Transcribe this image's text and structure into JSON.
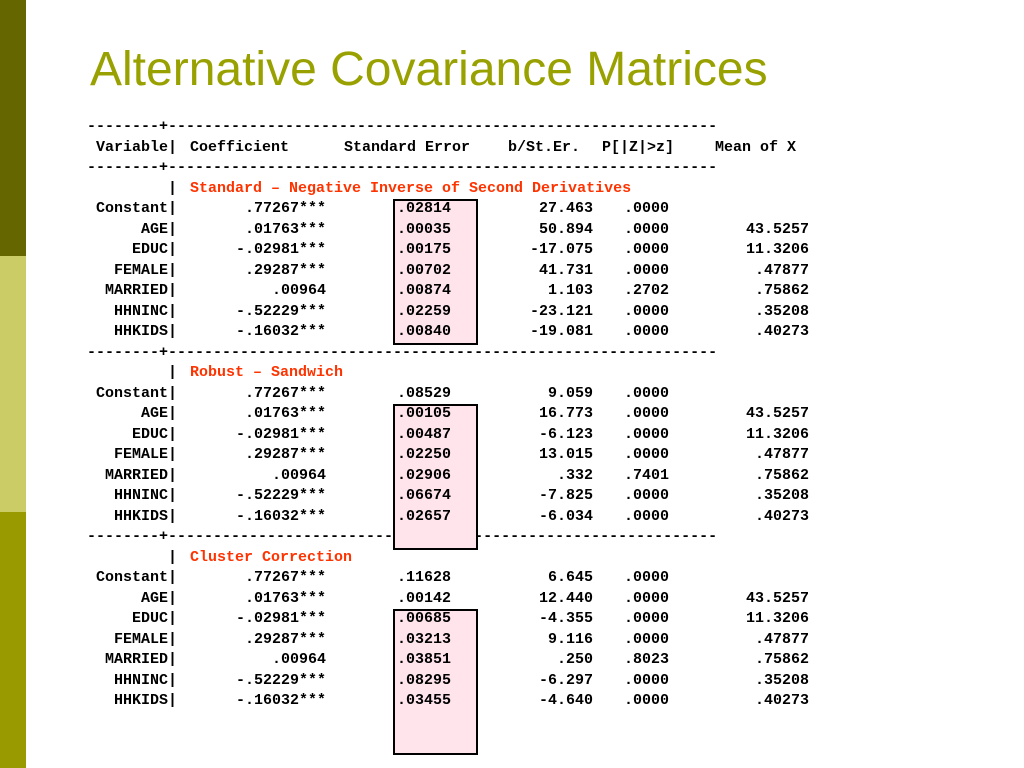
{
  "title": "Alternative Covariance Matrices",
  "header": {
    "divider_top": "--------+-------------------------------------------------------------",
    "variable": "Variable|",
    "coefficient": "Coefficient",
    "std_error": "Standard Error",
    "b_st_er": "b/St.Er.",
    "p_value": "P[|Z|>z]",
    "mean_x": "Mean of X",
    "divider": "--------+-------------------------------------------------------------"
  },
  "sections": [
    {
      "label": "Standard – Negative Inverse of Second Derivatives",
      "rows": [
        {
          "var": "Constant|",
          "coef": ".77267***",
          "se": ".02814",
          "z": "27.463",
          "p": ".0000",
          "mean": ""
        },
        {
          "var": "AGE|",
          "coef": ".01763***",
          "se": ".00035",
          "z": "50.894",
          "p": ".0000",
          "mean": "43.5257"
        },
        {
          "var": "EDUC|",
          "coef": "-.02981***",
          "se": ".00175",
          "z": "-17.075",
          "p": ".0000",
          "mean": "11.3206"
        },
        {
          "var": "FEMALE|",
          "coef": ".29287***",
          "se": ".00702",
          "z": "41.731",
          "p": ".0000",
          "mean": ".47877"
        },
        {
          "var": "MARRIED|",
          "coef": ".00964",
          "se": ".00874",
          "z": "1.103",
          "p": ".2702",
          "mean": ".75862"
        },
        {
          "var": "HHNINC|",
          "coef": "-.52229***",
          "se": ".02259",
          "z": "-23.121",
          "p": ".0000",
          "mean": ".35208"
        },
        {
          "var": "HHKIDS|",
          "coef": "-.16032***",
          "se": ".00840",
          "z": "-19.081",
          "p": ".0000",
          "mean": ".40273"
        }
      ]
    },
    {
      "label": "Robust – Sandwich",
      "rows": [
        {
          "var": "Constant|",
          "coef": ".77267***",
          "se": ".08529",
          "z": "9.059",
          "p": ".0000",
          "mean": ""
        },
        {
          "var": "AGE|",
          "coef": ".01763***",
          "se": ".00105",
          "z": "16.773",
          "p": ".0000",
          "mean": "43.5257"
        },
        {
          "var": "EDUC|",
          "coef": "-.02981***",
          "se": ".00487",
          "z": "-6.123",
          "p": ".0000",
          "mean": "11.3206"
        },
        {
          "var": "FEMALE|",
          "coef": ".29287***",
          "se": ".02250",
          "z": "13.015",
          "p": ".0000",
          "mean": ".47877"
        },
        {
          "var": "MARRIED|",
          "coef": ".00964",
          "se": ".02906",
          "z": ".332",
          "p": ".7401",
          "mean": ".75862"
        },
        {
          "var": "HHNINC|",
          "coef": "-.52229***",
          "se": ".06674",
          "z": "-7.825",
          "p": ".0000",
          "mean": ".35208"
        },
        {
          "var": "HHKIDS|",
          "coef": "-.16032***",
          "se": ".02657",
          "z": "-6.034",
          "p": ".0000",
          "mean": ".40273"
        }
      ]
    },
    {
      "label": "Cluster Correction",
      "rows": [
        {
          "var": "Constant|",
          "coef": ".77267***",
          "se": ".11628",
          "z": "6.645",
          "p": ".0000",
          "mean": ""
        },
        {
          "var": "AGE|",
          "coef": ".01763***",
          "se": ".00142",
          "z": "12.440",
          "p": ".0000",
          "mean": "43.5257"
        },
        {
          "var": "EDUC|",
          "coef": "-.02981***",
          "se": ".00685",
          "z": "-4.355",
          "p": ".0000",
          "mean": "11.3206"
        },
        {
          "var": "FEMALE|",
          "coef": ".29287***",
          "se": ".03213",
          "z": "9.116",
          "p": ".0000",
          "mean": ".47877"
        },
        {
          "var": "MARRIED|",
          "coef": ".00964",
          "se": ".03851",
          "z": ".250",
          "p": ".8023",
          "mean": ".75862"
        },
        {
          "var": "HHNINC|",
          "coef": "-.52229***",
          "se": ".08295",
          "z": "-6.297",
          "p": ".0000",
          "mean": ".35208"
        },
        {
          "var": "HHKIDS|",
          "coef": "-.16032***",
          "se": ".03455",
          "z": "-4.640",
          "p": ".0000",
          "mean": ".40273"
        }
      ]
    }
  ],
  "colors": {
    "title": "#99a100",
    "section_label": "#ff3300",
    "highlight": "#ffe4ec"
  }
}
